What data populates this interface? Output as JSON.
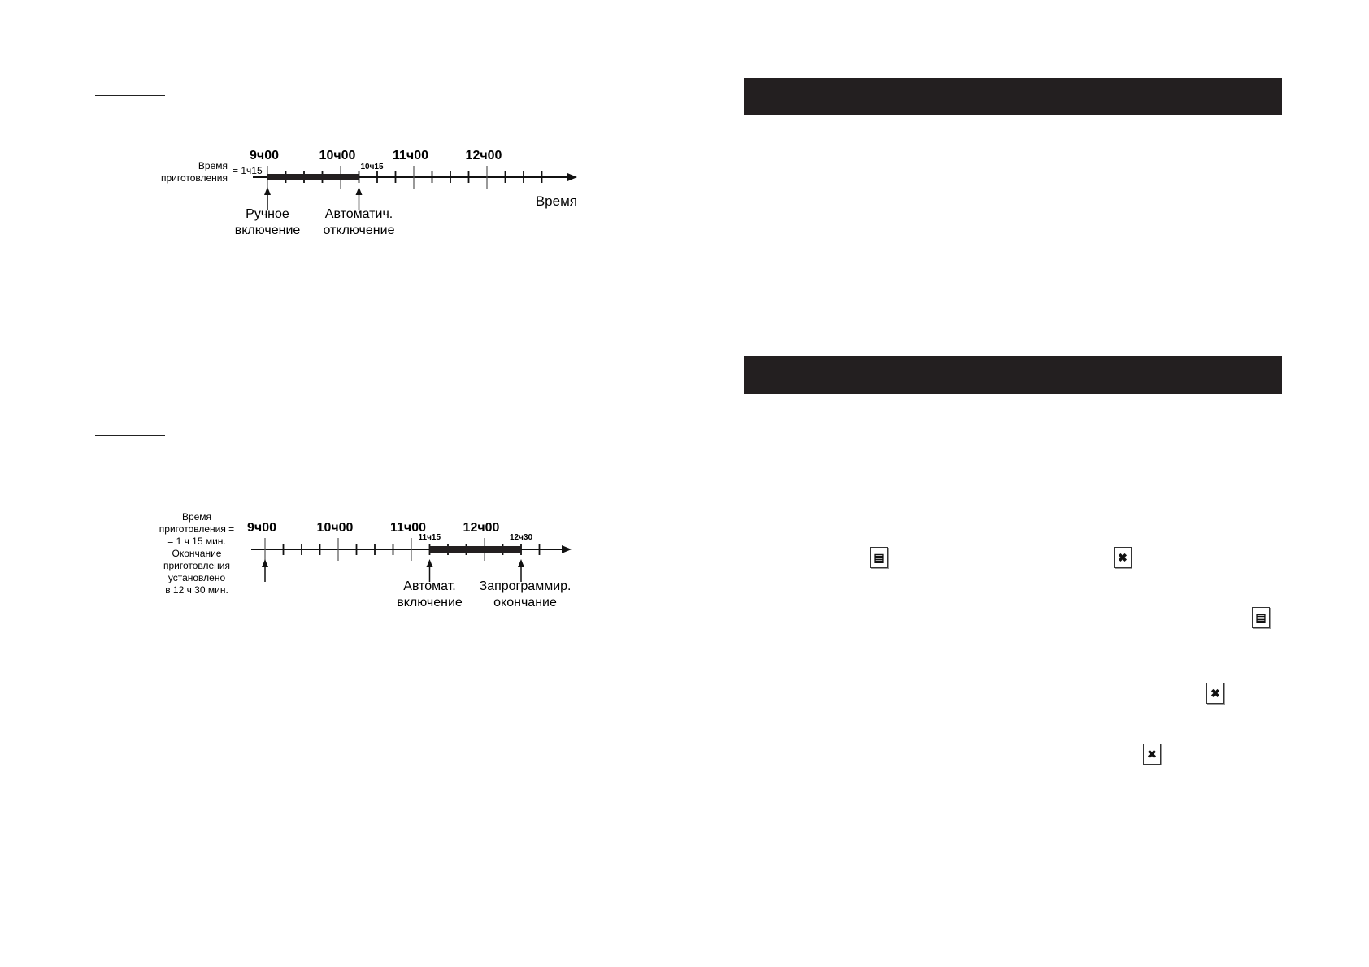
{
  "left_page": {
    "timeline_1": {
      "hour_labels": [
        "9ч00",
        "10ч00",
        "11ч00",
        "12ч00"
      ],
      "side_label": [
        "Время",
        "приготовления"
      ],
      "duration_label": "= 1ч15",
      "end_time_label": "10ч15",
      "axis_label": "Время",
      "bar": {
        "start": "9:00",
        "end": "10:15"
      },
      "markers": [
        {
          "time": "9:00",
          "label": [
            "Ручное",
            "включение"
          ]
        },
        {
          "time": "10:15",
          "label": [
            "Автоматич.",
            "отключение"
          ]
        }
      ]
    },
    "timeline_2": {
      "hour_labels": [
        "9ч00",
        "10ч00",
        "11ч00",
        "12ч00"
      ],
      "side_label": [
        "Время",
        "приготовления =",
        "= 1 ч 15 мин.",
        "Окончание",
        "приготовления",
        "установлено",
        "в 12 ч 30 мин."
      ],
      "start_time_label": "11ч15",
      "end_time_label": "12ч30",
      "bar": {
        "start": "11:15",
        "end": "12:30"
      },
      "markers": [
        {
          "time": "9:00",
          "label": []
        },
        {
          "time": "11:15",
          "label": [
            "Автомат.",
            "включение"
          ]
        },
        {
          "time": "12:30",
          "label": [
            "Запрограммир.",
            "окончание"
          ]
        }
      ]
    }
  },
  "right_page": {
    "icons": [
      "oven-icon",
      "fan-icon",
      "oven-icon",
      "fan-icon",
      "fan-icon"
    ]
  },
  "colors": {
    "header_bar": "#231f20",
    "ink": "#111111"
  }
}
